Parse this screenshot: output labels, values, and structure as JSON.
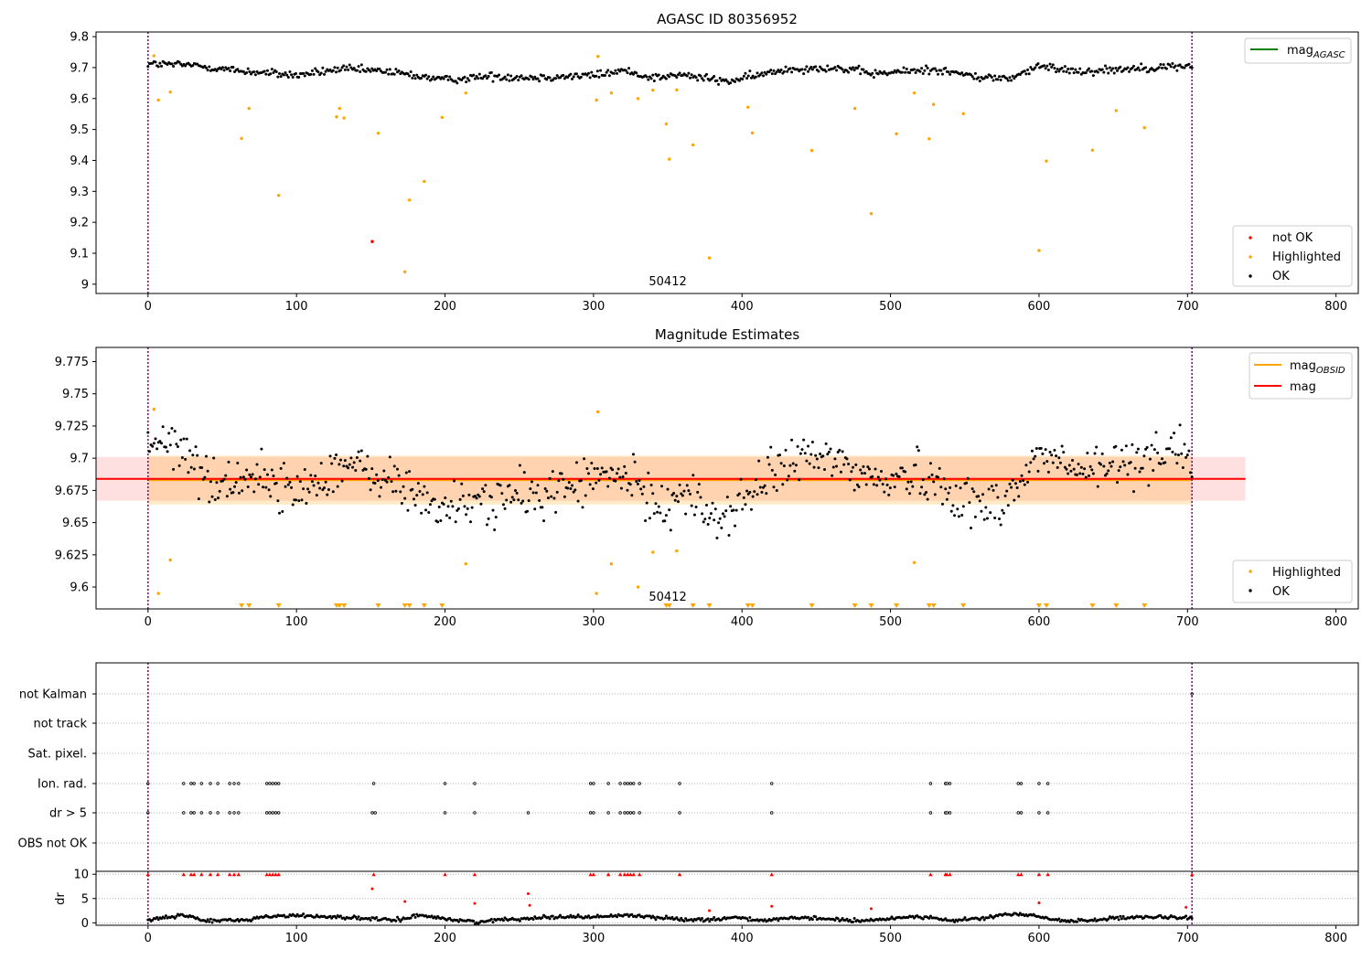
{
  "colors": {
    "ok": "#000000",
    "highlighted": "#ffa500",
    "not_ok": "#ff0000",
    "mag_agasc": "#008000",
    "mag_obsid": "#ffa500",
    "mag": "#ff0000",
    "obsid_line": "#800080",
    "band_red": "#ff0000",
    "band_orange": "#ffa500"
  },
  "chart_data": [
    {
      "type": "scatter",
      "title": "AGASC ID 80356952",
      "xlim": [
        -35,
        815
      ],
      "ylim": [
        8.97,
        9.815
      ],
      "xticks": [
        0,
        100,
        200,
        300,
        400,
        500,
        600,
        700,
        800
      ],
      "yticks": [
        9.0,
        9.1,
        9.2,
        9.3,
        9.4,
        9.5,
        9.6,
        9.7,
        9.8
      ],
      "obsid_label": "50412",
      "obsid_label_x": 350,
      "obsid_lines": [
        0,
        703
      ],
      "legend_upper": [
        {
          "name": "mag",
          "sub": "AGASC",
          "style": "line",
          "color_key": "mag_agasc"
        }
      ],
      "legend_lower": [
        {
          "name": "not OK",
          "style": "dot",
          "color_key": "not_ok"
        },
        {
          "name": "Highlighted",
          "style": "dot",
          "color_key": "highlighted"
        },
        {
          "name": "OK",
          "style": "dot",
          "color_key": "ok"
        }
      ],
      "ok_series": {
        "n": 700,
        "x_start": 0,
        "x_end": 703,
        "knots": [
          [
            0,
            9.712
          ],
          [
            30,
            9.708
          ],
          [
            60,
            9.69
          ],
          [
            100,
            9.675
          ],
          [
            130,
            9.695
          ],
          [
            160,
            9.688
          ],
          [
            200,
            9.66
          ],
          [
            230,
            9.672
          ],
          [
            260,
            9.668
          ],
          [
            300,
            9.675
          ],
          [
            320,
            9.69
          ],
          [
            340,
            9.668
          ],
          [
            360,
            9.676
          ],
          [
            390,
            9.655
          ],
          [
            410,
            9.674
          ],
          [
            430,
            9.695
          ],
          [
            460,
            9.7
          ],
          [
            490,
            9.68
          ],
          [
            530,
            9.695
          ],
          [
            560,
            9.668
          ],
          [
            580,
            9.665
          ],
          [
            600,
            9.703
          ],
          [
            630,
            9.688
          ],
          [
            660,
            9.697
          ],
          [
            703,
            9.705
          ]
        ],
        "spread": 0.009
      },
      "highlighted": [
        [
          4,
          9.738
        ],
        [
          7,
          9.595
        ],
        [
          15,
          9.621
        ],
        [
          63,
          9.471
        ],
        [
          68,
          9.568
        ],
        [
          88,
          9.287
        ],
        [
          127,
          9.541
        ],
        [
          129,
          9.568
        ],
        [
          132,
          9.537
        ],
        [
          155,
          9.488
        ],
        [
          173,
          9.04
        ],
        [
          176,
          9.272
        ],
        [
          186,
          9.332
        ],
        [
          198,
          9.539
        ],
        [
          214,
          9.618
        ],
        [
          302,
          9.595
        ],
        [
          303,
          9.736
        ],
        [
          312,
          9.618
        ],
        [
          330,
          9.6
        ],
        [
          340,
          9.627
        ],
        [
          349,
          9.518
        ],
        [
          351,
          9.404
        ],
        [
          356,
          9.628
        ],
        [
          367,
          9.45
        ],
        [
          378,
          9.085
        ],
        [
          404,
          9.572
        ],
        [
          407,
          9.489
        ],
        [
          447,
          9.432
        ],
        [
          476,
          9.568
        ],
        [
          487,
          9.228
        ],
        [
          504,
          9.486
        ],
        [
          516,
          9.618
        ],
        [
          526,
          9.47
        ],
        [
          529,
          9.581
        ],
        [
          549,
          9.551
        ],
        [
          600,
          9.109
        ],
        [
          605,
          9.398
        ],
        [
          636,
          9.433
        ],
        [
          652,
          9.561
        ],
        [
          671,
          9.506
        ]
      ],
      "not_ok": [
        [
          151,
          9.138
        ]
      ]
    },
    {
      "type": "scatter",
      "title": "Magnitude Estimates",
      "xlim": [
        -35,
        815
      ],
      "ylim": [
        9.583,
        9.786
      ],
      "xticks": [
        0,
        100,
        200,
        300,
        400,
        500,
        600,
        700,
        800
      ],
      "yticks": [
        9.6,
        9.625,
        9.65,
        9.675,
        9.7,
        9.725,
        9.75,
        9.775
      ],
      "obsid_label": "50412",
      "obsid_label_x": 350,
      "obsid_lines": [
        0,
        703
      ],
      "mag": 9.684,
      "mag_err": 0.017,
      "mag_obsid": 9.683,
      "mag_obsid_err": 0.019,
      "mag_band_x": [
        -35,
        739
      ],
      "obsid_band_x": [
        0,
        703
      ],
      "legend_upper": [
        {
          "name": "mag",
          "sub": "OBSID",
          "style": "line",
          "color_key": "mag_obsid"
        },
        {
          "name": "mag",
          "sub": "",
          "style": "line",
          "color_key": "mag"
        }
      ],
      "legend_lower": [
        {
          "name": "Highlighted",
          "style": "dot",
          "color_key": "highlighted"
        },
        {
          "name": "OK",
          "style": "dot",
          "color_key": "ok"
        }
      ],
      "ok_series": {
        "n": 700,
        "x_start": 0,
        "x_end": 703,
        "knots": [
          [
            0,
            9.714
          ],
          [
            25,
            9.705
          ],
          [
            45,
            9.678
          ],
          [
            70,
            9.688
          ],
          [
            100,
            9.672
          ],
          [
            130,
            9.696
          ],
          [
            160,
            9.684
          ],
          [
            200,
            9.66
          ],
          [
            230,
            9.668
          ],
          [
            260,
            9.67
          ],
          [
            300,
            9.684
          ],
          [
            320,
            9.686
          ],
          [
            345,
            9.663
          ],
          [
            360,
            9.673
          ],
          [
            385,
            9.652
          ],
          [
            410,
            9.676
          ],
          [
            430,
            9.697
          ],
          [
            460,
            9.7
          ],
          [
            490,
            9.682
          ],
          [
            520,
            9.688
          ],
          [
            560,
            9.662
          ],
          [
            582,
            9.672
          ],
          [
            600,
            9.703
          ],
          [
            630,
            9.689
          ],
          [
            660,
            9.697
          ],
          [
            690,
            9.709
          ],
          [
            703,
            9.7
          ]
        ],
        "spread": 0.013
      },
      "highlighted_in_range": [
        [
          4,
          9.738
        ],
        [
          7,
          9.595
        ],
        [
          15,
          9.621
        ],
        [
          214,
          9.618
        ],
        [
          302,
          9.595
        ],
        [
          303,
          9.736
        ],
        [
          312,
          9.618
        ],
        [
          330,
          9.6
        ],
        [
          340,
          9.627
        ],
        [
          356,
          9.628
        ],
        [
          516,
          9.619
        ]
      ],
      "highlighted_clipped_x": [
        63,
        68,
        88,
        127,
        129,
        132,
        155,
        173,
        176,
        186,
        198,
        349,
        351,
        367,
        378,
        404,
        407,
        447,
        476,
        487,
        504,
        526,
        529,
        549,
        600,
        605,
        636,
        652,
        671
      ]
    },
    {
      "type": "scatter",
      "title": "",
      "xlim": [
        -35,
        815
      ],
      "xticks": [
        0,
        100,
        200,
        300,
        400,
        500,
        600,
        700,
        800
      ],
      "obsid_lines": [
        0,
        703
      ],
      "flag_rows": [
        "not Kalman",
        "not track",
        "Sat. pixel.",
        "Ion. rad.",
        "dr > 5",
        "OBS not OK"
      ],
      "flags": {
        "not Kalman": [
          703
        ],
        "not track": [],
        "Sat. pixel.": [],
        "Ion. rad.": [
          0,
          24,
          29,
          31,
          36,
          42,
          47,
          55,
          58,
          61,
          80,
          82,
          84,
          86,
          88,
          152,
          200,
          220,
          298,
          300,
          310,
          318,
          321,
          323,
          325,
          327,
          331,
          358,
          420,
          527,
          537,
          538,
          540,
          586,
          588,
          600,
          606
        ],
        "dr > 5": [
          0,
          24,
          29,
          31,
          36,
          42,
          47,
          55,
          58,
          61,
          80,
          82,
          84,
          86,
          88,
          151,
          153,
          200,
          220,
          256,
          298,
          300,
          310,
          318,
          321,
          323,
          325,
          327,
          331,
          358,
          420,
          527,
          537,
          538,
          540,
          586,
          588,
          600,
          606
        ],
        "OBS not OK": []
      },
      "dr_panel": {
        "ylabel": "dr",
        "yticks": [
          0,
          5,
          10
        ],
        "ylim": [
          -0.5,
          10.6
        ],
        "clip_value": 10,
        "clipped_x": [
          0,
          24,
          29,
          31,
          36,
          42,
          47,
          55,
          58,
          61,
          80,
          82,
          84,
          86,
          88,
          152,
          200,
          220,
          298,
          300,
          310,
          318,
          321,
          323,
          325,
          327,
          331,
          358,
          420,
          527,
          537,
          538,
          540,
          586,
          588,
          600,
          606,
          703
        ],
        "outliers": [
          [
            151,
            7.0
          ],
          [
            173,
            4.4
          ],
          [
            220,
            4.0
          ],
          [
            256,
            6.0
          ],
          [
            257,
            3.6
          ],
          [
            378,
            2.5
          ],
          [
            420,
            3.4
          ],
          [
            487,
            2.9
          ],
          [
            600,
            4.1
          ],
          [
            699,
            3.2
          ]
        ],
        "ok_series": {
          "n": 700,
          "x_start": 0,
          "x_end": 703,
          "knots": [
            [
              0,
              0.5
            ],
            [
              25,
              1.6
            ],
            [
              38,
              0.4
            ],
            [
              65,
              0.6
            ],
            [
              80,
              1.3
            ],
            [
              100,
              1.5
            ],
            [
              128,
              1.2
            ],
            [
              150,
              0.8
            ],
            [
              165,
              0.5
            ],
            [
              185,
              1.6
            ],
            [
              205,
              0.6
            ],
            [
              222,
              0.2
            ],
            [
              245,
              0.8
            ],
            [
              280,
              1.3
            ],
            [
              300,
              1.2
            ],
            [
              325,
              1.6
            ],
            [
              345,
              1.0
            ],
            [
              372,
              0.6
            ],
            [
              395,
              1.1
            ],
            [
              415,
              0.5
            ],
            [
              440,
              1.0
            ],
            [
              460,
              0.8
            ],
            [
              480,
              0.3
            ],
            [
              500,
              0.9
            ],
            [
              520,
              1.4
            ],
            [
              540,
              0.4
            ],
            [
              560,
              0.9
            ],
            [
              585,
              1.9
            ],
            [
              600,
              1.2
            ],
            [
              620,
              0.3
            ],
            [
              650,
              0.9
            ],
            [
              680,
              1.2
            ],
            [
              703,
              0.9
            ]
          ],
          "spread": 0.25
        }
      }
    }
  ]
}
